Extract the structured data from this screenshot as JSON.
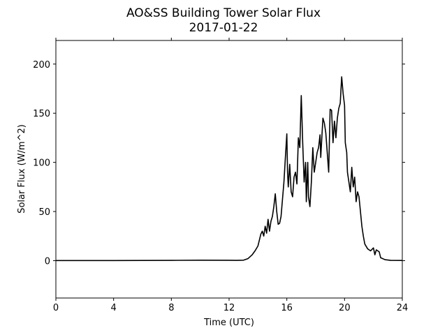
{
  "chart_data": {
    "type": "line",
    "title": "AO&SS Building Tower Solar Flux",
    "subtitle": "2017-01-22",
    "x_label": "Time (UTC)",
    "y_label": "Solar Flux (W/m^2)",
    "xlim": [
      0,
      24
    ],
    "xticks": [
      0,
      4,
      8,
      12,
      16,
      20,
      24
    ],
    "ylim": [
      -38,
      224
    ],
    "yticks": [
      0,
      50,
      100,
      150,
      200
    ],
    "series": [
      {
        "color": "#000000",
        "x": [
          0,
          4,
          8,
          10,
          12,
          12.5,
          13,
          13.3,
          13.6,
          13.8,
          14,
          14.2,
          14.3,
          14.4,
          14.5,
          14.6,
          14.7,
          14.8,
          14.9,
          15,
          15.1,
          15.2,
          15.3,
          15.4,
          15.5,
          15.6,
          15.8,
          15.9,
          16,
          16.05,
          16.1,
          16.2,
          16.3,
          16.4,
          16.5,
          16.6,
          16.7,
          16.8,
          16.9,
          17,
          17.1,
          17.2,
          17.3,
          17.35,
          17.45,
          17.5,
          17.6,
          17.7,
          17.8,
          17.9,
          18,
          18.1,
          18.2,
          18.3,
          18.35,
          18.5,
          18.6,
          18.7,
          18.8,
          18.9,
          19,
          19.1,
          19.2,
          19.3,
          19.4,
          19.5,
          19.6,
          19.7,
          19.8,
          19.9,
          20,
          20.05,
          20.15,
          20.2,
          20.3,
          20.4,
          20.5,
          20.6,
          20.7,
          20.8,
          20.9,
          21,
          21.1,
          21.2,
          21.3,
          21.4,
          21.6,
          21.8,
          22,
          22.1,
          22.2,
          22.4,
          22.5,
          22.8,
          23.2,
          24
        ],
        "values": [
          0.1,
          0.1,
          0.3,
          0.5,
          0.4,
          0.3,
          0.5,
          2,
          6,
          10,
          15,
          27,
          30,
          25,
          35,
          28,
          42,
          30,
          40,
          45,
          55,
          68,
          50,
          37,
          38,
          45,
          80,
          105,
          129,
          90,
          75,
          98,
          70,
          65,
          85,
          90,
          78,
          125,
          115,
          168,
          120,
          80,
          100,
          60,
          100,
          65,
          55,
          80,
          115,
          90,
          100,
          110,
          115,
          128,
          105,
          145,
          140,
          130,
          110,
          90,
          154,
          153,
          120,
          142,
          125,
          145,
          155,
          160,
          187,
          170,
          158,
          120,
          110,
          90,
          80,
          70,
          95,
          75,
          85,
          60,
          70,
          65,
          50,
          35,
          25,
          17,
          12,
          10,
          13,
          6,
          11,
          9,
          3,
          1,
          0.3,
          0.2
        ]
      }
    ]
  }
}
